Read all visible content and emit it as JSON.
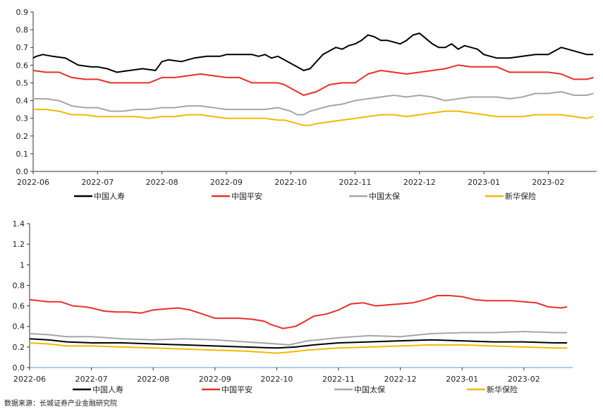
{
  "source_note": "数据来源：长城证券产业金融研究院",
  "chart_data": [
    {
      "type": "line",
      "x_ticks": [
        "2022-06",
        "2022-07",
        "2022-08",
        "2022-09",
        "2022-10",
        "2022-11",
        "2022-12",
        "2023-01",
        "2023-02"
      ],
      "ylim": [
        0,
        0.9
      ],
      "y_ticks": [
        "0.0",
        "0.1",
        "0.2",
        "0.3",
        "0.4",
        "0.5",
        "0.6",
        "0.7",
        "0.8",
        "0.9"
      ],
      "grid": false,
      "legend_position": "bottom",
      "colors": [
        "#000000",
        "#e8302a",
        "#a6a6a6",
        "#f5b800"
      ],
      "series": [
        {
          "name": "中国人寿",
          "color": "#000000",
          "x": [
            0,
            0.05,
            0.15,
            0.3,
            0.5,
            0.7,
            0.9,
            1.0,
            1.15,
            1.3,
            1.5,
            1.7,
            1.9,
            2.0,
            2.1,
            2.3,
            2.5,
            2.7,
            2.9,
            3.0,
            3.2,
            3.4,
            3.5,
            3.6,
            3.7,
            3.8,
            3.9,
            4.0,
            4.1,
            4.2,
            4.3,
            4.4,
            4.5,
            4.6,
            4.7,
            4.8,
            4.9,
            5.0,
            5.1,
            5.2,
            5.3,
            5.4,
            5.5,
            5.6,
            5.7,
            5.8,
            5.9,
            6.0,
            6.1,
            6.2,
            6.3,
            6.4,
            6.5,
            6.6,
            6.7,
            6.8,
            6.9,
            7.0,
            7.2,
            7.4,
            7.6,
            7.8,
            8.0,
            8.2,
            8.4,
            8.6,
            8.7
          ],
          "values": [
            0.64,
            0.65,
            0.66,
            0.65,
            0.64,
            0.6,
            0.59,
            0.59,
            0.58,
            0.56,
            0.57,
            0.58,
            0.57,
            0.62,
            0.63,
            0.62,
            0.64,
            0.65,
            0.65,
            0.66,
            0.66,
            0.66,
            0.65,
            0.66,
            0.64,
            0.65,
            0.63,
            0.61,
            0.59,
            0.57,
            0.58,
            0.62,
            0.66,
            0.68,
            0.7,
            0.69,
            0.71,
            0.72,
            0.74,
            0.77,
            0.76,
            0.74,
            0.74,
            0.73,
            0.72,
            0.74,
            0.77,
            0.78,
            0.75,
            0.72,
            0.7,
            0.7,
            0.72,
            0.69,
            0.71,
            0.7,
            0.69,
            0.66,
            0.64,
            0.64,
            0.65,
            0.66,
            0.66,
            0.7,
            0.68,
            0.66,
            0.66
          ]
        },
        {
          "name": "中国平安",
          "color": "#e8302a",
          "x": [
            0,
            0.2,
            0.4,
            0.6,
            0.8,
            1.0,
            1.2,
            1.4,
            1.6,
            1.8,
            2.0,
            2.2,
            2.4,
            2.6,
            2.8,
            3.0,
            3.2,
            3.4,
            3.6,
            3.8,
            3.9,
            4.0,
            4.1,
            4.2,
            4.3,
            4.4,
            4.6,
            4.8,
            5.0,
            5.2,
            5.4,
            5.6,
            5.8,
            6.0,
            6.2,
            6.4,
            6.6,
            6.8,
            7.0,
            7.2,
            7.4,
            7.6,
            7.8,
            8.0,
            8.2,
            8.4,
            8.6,
            8.7
          ],
          "values": [
            0.57,
            0.56,
            0.56,
            0.53,
            0.52,
            0.52,
            0.5,
            0.5,
            0.5,
            0.5,
            0.53,
            0.53,
            0.54,
            0.55,
            0.54,
            0.53,
            0.53,
            0.5,
            0.5,
            0.5,
            0.49,
            0.47,
            0.45,
            0.43,
            0.44,
            0.45,
            0.49,
            0.5,
            0.5,
            0.55,
            0.57,
            0.56,
            0.55,
            0.56,
            0.57,
            0.58,
            0.6,
            0.59,
            0.59,
            0.59,
            0.56,
            0.56,
            0.56,
            0.56,
            0.55,
            0.52,
            0.52,
            0.53
          ]
        },
        {
          "name": "中国太保",
          "color": "#a6a6a6",
          "x": [
            0,
            0.2,
            0.4,
            0.6,
            0.8,
            1.0,
            1.2,
            1.4,
            1.6,
            1.8,
            2.0,
            2.2,
            2.4,
            2.6,
            2.8,
            3.0,
            3.2,
            3.4,
            3.6,
            3.8,
            3.9,
            4.0,
            4.1,
            4.2,
            4.3,
            4.4,
            4.6,
            4.8,
            5.0,
            5.2,
            5.4,
            5.6,
            5.8,
            6.0,
            6.2,
            6.4,
            6.6,
            6.8,
            7.0,
            7.2,
            7.4,
            7.6,
            7.8,
            8.0,
            8.2,
            8.4,
            8.6,
            8.7
          ],
          "values": [
            0.41,
            0.41,
            0.4,
            0.37,
            0.36,
            0.36,
            0.34,
            0.34,
            0.35,
            0.35,
            0.36,
            0.36,
            0.37,
            0.37,
            0.36,
            0.35,
            0.35,
            0.35,
            0.35,
            0.36,
            0.35,
            0.34,
            0.32,
            0.32,
            0.34,
            0.35,
            0.37,
            0.38,
            0.4,
            0.41,
            0.42,
            0.43,
            0.42,
            0.43,
            0.42,
            0.4,
            0.41,
            0.42,
            0.42,
            0.42,
            0.41,
            0.42,
            0.44,
            0.44,
            0.45,
            0.43,
            0.43,
            0.44
          ]
        },
        {
          "name": "新华保险",
          "color": "#f5b800",
          "x": [
            0,
            0.2,
            0.4,
            0.6,
            0.8,
            1.0,
            1.2,
            1.4,
            1.6,
            1.8,
            2.0,
            2.2,
            2.4,
            2.6,
            2.8,
            3.0,
            3.2,
            3.4,
            3.6,
            3.8,
            3.9,
            4.0,
            4.1,
            4.2,
            4.3,
            4.4,
            4.6,
            4.8,
            5.0,
            5.2,
            5.4,
            5.6,
            5.8,
            6.0,
            6.2,
            6.4,
            6.6,
            6.8,
            7.0,
            7.2,
            7.4,
            7.6,
            7.8,
            8.0,
            8.2,
            8.4,
            8.6,
            8.7
          ],
          "values": [
            0.35,
            0.35,
            0.34,
            0.32,
            0.32,
            0.31,
            0.31,
            0.31,
            0.31,
            0.3,
            0.31,
            0.31,
            0.32,
            0.32,
            0.31,
            0.3,
            0.3,
            0.3,
            0.3,
            0.29,
            0.29,
            0.28,
            0.27,
            0.26,
            0.26,
            0.27,
            0.28,
            0.29,
            0.3,
            0.31,
            0.32,
            0.32,
            0.31,
            0.32,
            0.33,
            0.34,
            0.34,
            0.33,
            0.32,
            0.31,
            0.31,
            0.31,
            0.32,
            0.32,
            0.32,
            0.31,
            0.3,
            0.31
          ]
        }
      ]
    },
    {
      "type": "line",
      "x_ticks": [
        "2022-06",
        "2022-07",
        "2022-08",
        "2022-09",
        "2022-10",
        "2022-11",
        "2022-12",
        "2023-01",
        "2023-02"
      ],
      "ylim": [
        0,
        1.4
      ],
      "y_ticks": [
        "0.0",
        "0.2",
        "0.4",
        "0.6",
        "0.8",
        "1",
        "1.2",
        "1.4"
      ],
      "grid": false,
      "legend_position": "bottom",
      "colors": [
        "#000000",
        "#e8302a",
        "#a6a6a6",
        "#f5b800"
      ],
      "series": [
        {
          "name": "中国人寿",
          "color": "#000000",
          "x": [
            0,
            0.3,
            0.6,
            1.0,
            1.5,
            2.0,
            2.5,
            3.0,
            3.5,
            4.0,
            4.3,
            4.6,
            5.0,
            5.5,
            6.0,
            6.5,
            7.0,
            7.5,
            8.0,
            8.5,
            8.7
          ],
          "values": [
            0.28,
            0.27,
            0.25,
            0.24,
            0.24,
            0.23,
            0.22,
            0.21,
            0.2,
            0.19,
            0.2,
            0.22,
            0.24,
            0.25,
            0.26,
            0.27,
            0.26,
            0.25,
            0.25,
            0.24,
            0.24
          ]
        },
        {
          "name": "中国平安",
          "color": "#e8302a",
          "x": [
            0,
            0.3,
            0.5,
            0.7,
            0.9,
            1.0,
            1.2,
            1.4,
            1.6,
            1.8,
            2.0,
            2.2,
            2.4,
            2.6,
            2.8,
            3.0,
            3.2,
            3.4,
            3.6,
            3.8,
            3.9,
            4.0,
            4.1,
            4.2,
            4.3,
            4.4,
            4.6,
            4.8,
            5.0,
            5.2,
            5.4,
            5.6,
            5.8,
            6.0,
            6.2,
            6.4,
            6.6,
            6.8,
            7.0,
            7.2,
            7.4,
            7.6,
            7.8,
            8.0,
            8.2,
            8.4,
            8.6,
            8.7
          ],
          "values": [
            0.66,
            0.64,
            0.64,
            0.6,
            0.59,
            0.58,
            0.55,
            0.54,
            0.54,
            0.53,
            0.56,
            0.57,
            0.58,
            0.56,
            0.52,
            0.48,
            0.48,
            0.48,
            0.47,
            0.45,
            0.42,
            0.4,
            0.38,
            0.39,
            0.4,
            0.43,
            0.5,
            0.52,
            0.56,
            0.62,
            0.63,
            0.6,
            0.61,
            0.62,
            0.63,
            0.66,
            0.7,
            0.7,
            0.69,
            0.66,
            0.65,
            0.65,
            0.65,
            0.64,
            0.63,
            0.59,
            0.58,
            0.59
          ]
        },
        {
          "name": "中国太保",
          "color": "#a6a6a6",
          "x": [
            0,
            0.3,
            0.6,
            1.0,
            1.5,
            2.0,
            2.5,
            3.0,
            3.5,
            4.0,
            4.2,
            4.5,
            5.0,
            5.5,
            6.0,
            6.5,
            7.0,
            7.5,
            8.0,
            8.5,
            8.7
          ],
          "values": [
            0.33,
            0.32,
            0.3,
            0.3,
            0.28,
            0.27,
            0.28,
            0.27,
            0.25,
            0.23,
            0.22,
            0.26,
            0.29,
            0.31,
            0.3,
            0.33,
            0.34,
            0.34,
            0.35,
            0.34,
            0.34
          ]
        },
        {
          "name": "新华保险",
          "color": "#f5b800",
          "x": [
            0,
            0.3,
            0.6,
            1.0,
            1.5,
            2.0,
            2.5,
            3.0,
            3.5,
            4.0,
            4.2,
            4.5,
            5.0,
            5.5,
            6.0,
            6.5,
            7.0,
            7.5,
            8.0,
            8.5,
            8.7
          ],
          "values": [
            0.24,
            0.23,
            0.21,
            0.21,
            0.2,
            0.19,
            0.18,
            0.17,
            0.16,
            0.14,
            0.15,
            0.17,
            0.19,
            0.2,
            0.21,
            0.22,
            0.22,
            0.21,
            0.2,
            0.19,
            0.19
          ]
        }
      ]
    }
  ]
}
